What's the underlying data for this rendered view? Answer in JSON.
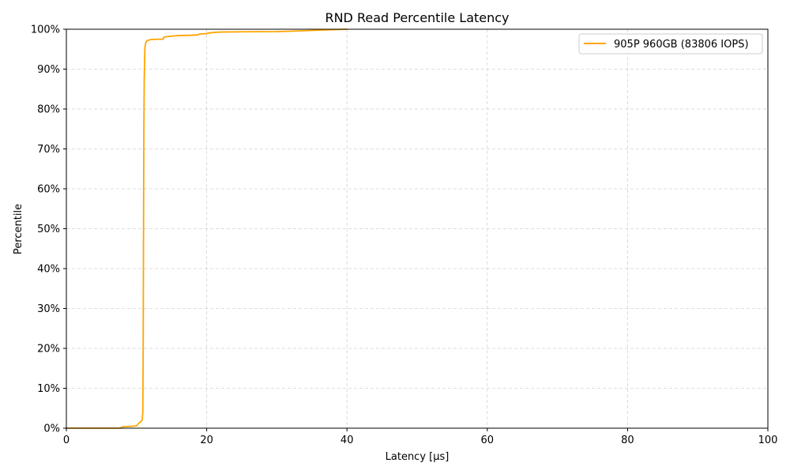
{
  "chart_data": {
    "type": "line",
    "title": "RND Read Percentile Latency",
    "xlabel": "Latency [µs]",
    "ylabel": "Percentile",
    "xlim": [
      0,
      100
    ],
    "ylim": [
      0,
      100
    ],
    "x_ticks": [
      0,
      20,
      40,
      60,
      80,
      100
    ],
    "y_ticks": [
      0,
      10,
      20,
      30,
      40,
      50,
      60,
      70,
      80,
      90,
      100
    ],
    "x_tick_labels": [
      "0",
      "20",
      "40",
      "60",
      "80",
      "100"
    ],
    "y_tick_labels": [
      "0%",
      "10%",
      "20%",
      "30%",
      "40%",
      "50%",
      "60%",
      "70%",
      "80%",
      "90%",
      "100%"
    ],
    "grid": true,
    "legend_position": "top-right",
    "series": [
      {
        "name": "905P 960GB (83806 IOPS)",
        "color": "#ffa500",
        "x": [
          0,
          7.7,
          7.9,
          8.5,
          9.5,
          10.0,
          10.2,
          10.4,
          10.6,
          10.8,
          10.9,
          10.95,
          11.0,
          11.05,
          11.1,
          11.15,
          11.2,
          11.35,
          11.6,
          12.0,
          13.0,
          13.8,
          13.9,
          14.5,
          16.0,
          18.0,
          18.8,
          19.0,
          20.0,
          20.2,
          21.0,
          22.0,
          25.0,
          30.0,
          32.0,
          35.0,
          40.0
        ],
        "y": [
          0,
          0,
          0.3,
          0.4,
          0.5,
          0.6,
          1.0,
          1.4,
          1.6,
          2.0,
          4.0,
          20.0,
          50.0,
          75.0,
          87.0,
          92.0,
          95.5,
          96.8,
          97.2,
          97.4,
          97.5,
          97.5,
          98.0,
          98.2,
          98.4,
          98.5,
          98.6,
          98.8,
          98.9,
          99.0,
          99.2,
          99.3,
          99.35,
          99.4,
          99.5,
          99.7,
          100.0
        ]
      }
    ]
  }
}
